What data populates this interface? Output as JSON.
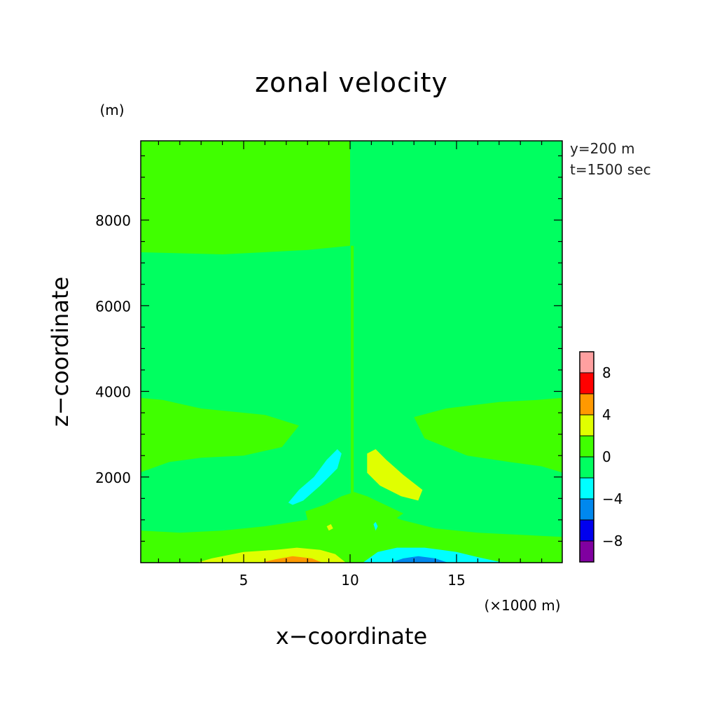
{
  "chart_data": {
    "type": "heatmap",
    "title": "zonal velocity",
    "xlabel": "x−coordinate",
    "ylabel": "z−coordinate",
    "x_unit": "(×1000 m)",
    "y_unit": "(m)",
    "annotations": [
      "y=200 m",
      "t=1500 sec"
    ],
    "xlim": [
      0,
      20
    ],
    "ylim": [
      0,
      10000
    ],
    "x_ticks": [
      5,
      10,
      15
    ],
    "x_tick_labels": [
      "5",
      "10",
      "15"
    ],
    "y_ticks": [
      2000,
      4000,
      6000,
      8000
    ],
    "y_tick_labels": [
      "2000",
      "4000",
      "6000",
      "8000"
    ],
    "legend_position": "right",
    "colorbar": {
      "levels": [
        -10,
        -8,
        -6,
        -4,
        -2,
        0,
        2,
        4,
        6,
        8,
        10
      ],
      "tick_values": [
        -8,
        -4,
        0,
        4,
        8
      ],
      "tick_labels": [
        "−8",
        "−4",
        "0",
        "4",
        "8"
      ],
      "colors": [
        "#8000a0",
        "#0000ee",
        "#0088ee",
        "#00ffff",
        "#00ff60",
        "#40ff00",
        "#e0ff00",
        "#ff9900",
        "#ff0000",
        "#ffa0a0"
      ]
    },
    "regions": [
      {
        "value_range": [
          0,
          2
        ],
        "color": "#40ff00",
        "points": [
          [
            0,
            7250
          ],
          [
            4,
            7200
          ],
          [
            8,
            7300
          ],
          [
            10,
            7400
          ],
          [
            10,
            10000
          ],
          [
            0,
            10000
          ]
        ]
      },
      {
        "value_range": [
          -2,
          0
        ],
        "color": "#00ff60",
        "points": [
          [
            10,
            7400
          ],
          [
            12,
            7350
          ],
          [
            16,
            7250
          ],
          [
            20,
            7250
          ],
          [
            20,
            10000
          ],
          [
            10,
            10000
          ]
        ]
      },
      {
        "value_range": [
          0,
          2
        ],
        "color": "#40ff00",
        "points": [
          [
            0,
            3850
          ],
          [
            1.2,
            3800
          ],
          [
            3,
            3600
          ],
          [
            6,
            3450
          ],
          [
            7.6,
            3200
          ],
          [
            6.8,
            2700
          ],
          [
            5,
            2500
          ],
          [
            3,
            2450
          ],
          [
            1.5,
            2350
          ],
          [
            0,
            2100
          ]
        ]
      },
      {
        "value_range": [
          0,
          2
        ],
        "color": "#40ff00",
        "points": [
          [
            20,
            3850
          ],
          [
            18.8,
            3800
          ],
          [
            17,
            3750
          ],
          [
            14.5,
            3600
          ],
          [
            13,
            3400
          ],
          [
            13.5,
            2900
          ],
          [
            15.5,
            2500
          ],
          [
            17.5,
            2350
          ],
          [
            19,
            2250
          ],
          [
            20,
            2100
          ]
        ]
      },
      {
        "value_range": [
          0,
          2
        ],
        "color": "#40ff00",
        "points": [
          [
            0,
            750
          ],
          [
            2,
            700
          ],
          [
            4,
            750
          ],
          [
            6,
            850
          ],
          [
            8,
            1000
          ],
          [
            9.2,
            1250
          ],
          [
            10.2,
            1450
          ],
          [
            11,
            1300
          ],
          [
            12.4,
            1000
          ],
          [
            14,
            800
          ],
          [
            16,
            700
          ],
          [
            18,
            650
          ],
          [
            20,
            600
          ],
          [
            20,
            0
          ],
          [
            0,
            0
          ]
        ]
      },
      {
        "value_range": [
          0,
          2
        ],
        "color": "#40ff00",
        "points": [
          [
            7.9,
            1200
          ],
          [
            8.8,
            1350
          ],
          [
            9.6,
            1550
          ],
          [
            10.2,
            1650
          ],
          [
            10.8,
            1550
          ],
          [
            12.5,
            1150
          ],
          [
            11.5,
            800
          ],
          [
            10.3,
            700
          ],
          [
            9.0,
            800
          ],
          [
            8.0,
            1000
          ]
        ]
      },
      {
        "value_range": [
          2,
          4
        ],
        "color": "#e0ff00",
        "points": [
          [
            2.8,
            0
          ],
          [
            3.5,
            100
          ],
          [
            5,
            250
          ],
          [
            6.5,
            300
          ],
          [
            7.5,
            350
          ],
          [
            8.6,
            300
          ],
          [
            9.3,
            200
          ],
          [
            9.8,
            0
          ]
        ]
      },
      {
        "value_range": [
          4,
          6
        ],
        "color": "#ff9900",
        "points": [
          [
            5.8,
            0
          ],
          [
            6.5,
            80
          ],
          [
            7.3,
            150
          ],
          [
            8.2,
            100
          ],
          [
            8.7,
            0
          ]
        ]
      },
      {
        "value_range": [
          -4,
          -2
        ],
        "color": "#00ffff",
        "points": [
          [
            10.6,
            0
          ],
          [
            11.3,
            250
          ],
          [
            12.2,
            350
          ],
          [
            13.5,
            350
          ],
          [
            15,
            250
          ],
          [
            16,
            130
          ],
          [
            17.2,
            0
          ]
        ]
      },
      {
        "value_range": [
          -6,
          -4
        ],
        "color": "#0088ee",
        "points": [
          [
            11.9,
            0
          ],
          [
            12.5,
            100
          ],
          [
            13.2,
            150
          ],
          [
            14,
            100
          ],
          [
            14.6,
            0
          ]
        ]
      },
      {
        "value_range": [
          -4,
          -2
        ],
        "color": "#00ffff",
        "points": [
          [
            7.1,
            1400
          ],
          [
            7.6,
            1700
          ],
          [
            8.3,
            2000
          ],
          [
            8.9,
            2400
          ],
          [
            9.4,
            2650
          ],
          [
            9.6,
            2550
          ],
          [
            9.4,
            2200
          ],
          [
            8.6,
            1800
          ],
          [
            7.8,
            1450
          ],
          [
            7.3,
            1350
          ]
        ]
      },
      {
        "value_range": [
          2,
          4
        ],
        "color": "#e0ff00",
        "points": [
          [
            10.8,
            2550
          ],
          [
            11.2,
            2650
          ],
          [
            11.7,
            2400
          ],
          [
            12.5,
            2050
          ],
          [
            13.4,
            1700
          ],
          [
            13.2,
            1450
          ],
          [
            12.4,
            1550
          ],
          [
            11.4,
            1800
          ],
          [
            10.8,
            2100
          ]
        ]
      },
      {
        "value_range": [
          2,
          4
        ],
        "color": "#e0ff00",
        "points": [
          [
            8.9,
            850
          ],
          [
            9.1,
            900
          ],
          [
            9.2,
            800
          ],
          [
            9.0,
            750
          ]
        ]
      },
      {
        "value_range": [
          -4,
          -2
        ],
        "color": "#00ffff",
        "points": [
          [
            11.1,
            900
          ],
          [
            11.2,
            950
          ],
          [
            11.3,
            850
          ],
          [
            11.2,
            750
          ]
        ]
      }
    ],
    "center_line": {
      "x": 10.1,
      "y_range": [
        0,
        7400
      ],
      "color": "#40ff00"
    }
  }
}
